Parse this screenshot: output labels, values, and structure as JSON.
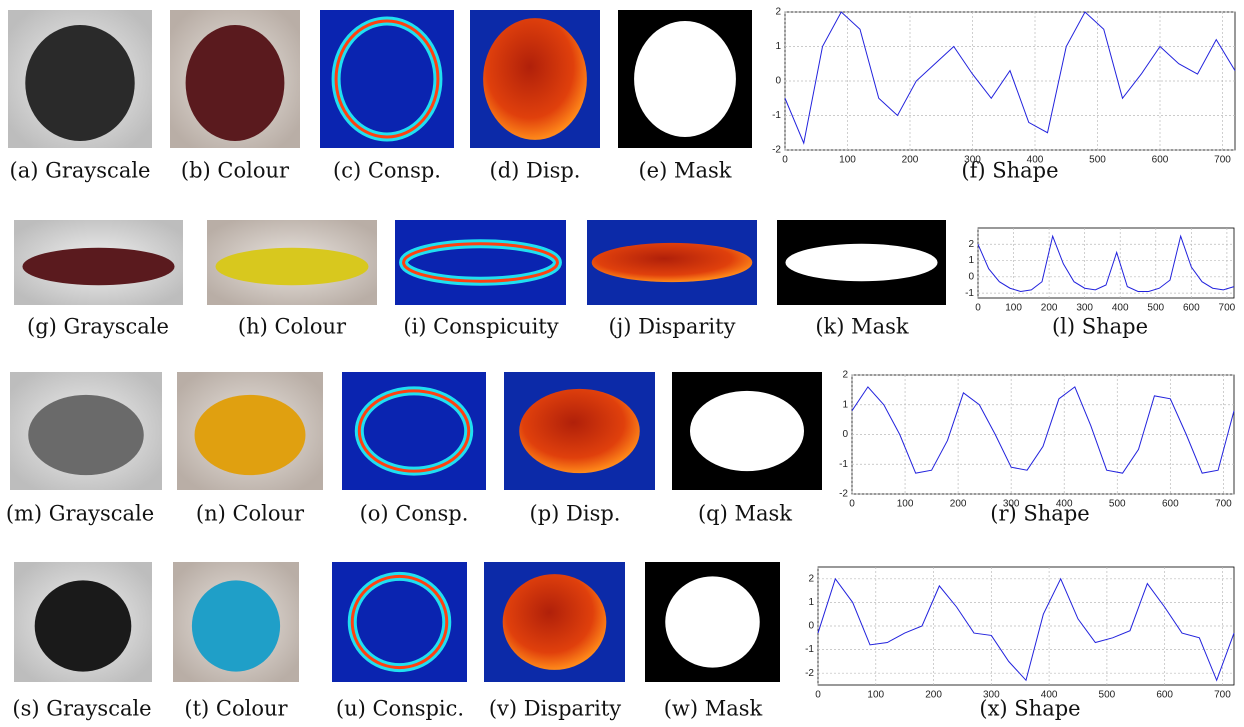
{
  "captions": [
    [
      "(a) Grayscale",
      "(b) Colour",
      "(c) Consp.",
      "(d) Disp.",
      "(e) Mask",
      "(f) Shape"
    ],
    [
      "(g) Grayscale",
      "(h) Colour",
      "(i) Conspicuity",
      "(j) Disparity",
      "(k) Mask",
      "(l) Shape"
    ],
    [
      "(m) Grayscale",
      "(n) Colour",
      "(o) Consp.",
      "(p) Disp.",
      "(q) Mask",
      "(r) Shape"
    ],
    [
      "(s) Grayscale",
      "(t) Colour",
      "(u) Conspic.",
      "(v) Disparity",
      "(w) Mask",
      "(x) Shape"
    ]
  ],
  "chart_data": [
    {
      "type": "line",
      "color": "#2222dd",
      "grid": true,
      "xlim": [
        0,
        720
      ],
      "ylim": [
        -2,
        2
      ],
      "xticks": [
        0,
        100,
        200,
        300,
        400,
        500,
        600,
        700
      ],
      "yticks": [
        -2,
        -1,
        0,
        1,
        2
      ],
      "x": [
        0,
        30,
        60,
        90,
        120,
        150,
        180,
        210,
        240,
        270,
        300,
        330,
        360,
        390,
        420,
        450,
        480,
        510,
        540,
        570,
        600,
        630,
        660,
        690,
        720
      ],
      "values": [
        -0.5,
        -1.8,
        1.0,
        2.0,
        1.5,
        -0.5,
        -1.0,
        0.0,
        0.5,
        1.0,
        0.2,
        -0.5,
        0.3,
        -1.2,
        -1.5,
        1.0,
        2.0,
        1.5,
        -0.5,
        0.2,
        1.0,
        0.5,
        0.2,
        1.2,
        0.3
      ]
    },
    {
      "type": "line",
      "color": "#2222dd",
      "grid": true,
      "xlim": [
        0,
        720
      ],
      "ylim": [
        -1.3,
        3
      ],
      "xticks": [
        0,
        100,
        200,
        300,
        400,
        500,
        600,
        700
      ],
      "yticks": [
        -1,
        0,
        1,
        2
      ],
      "x": [
        0,
        30,
        60,
        90,
        120,
        150,
        180,
        210,
        240,
        270,
        300,
        330,
        360,
        390,
        420,
        450,
        480,
        510,
        540,
        570,
        600,
        630,
        660,
        690,
        720
      ],
      "values": [
        2.0,
        0.5,
        -0.3,
        -0.7,
        -0.9,
        -0.8,
        -0.3,
        2.5,
        0.8,
        -0.3,
        -0.7,
        -0.8,
        -0.5,
        1.5,
        -0.6,
        -0.9,
        -0.9,
        -0.7,
        -0.2,
        2.5,
        0.6,
        -0.3,
        -0.7,
        -0.8,
        -0.6
      ]
    },
    {
      "type": "line",
      "color": "#2222dd",
      "grid": true,
      "xlim": [
        0,
        720
      ],
      "ylim": [
        -2,
        2
      ],
      "xticks": [
        0,
        100,
        200,
        300,
        400,
        500,
        600,
        700
      ],
      "yticks": [
        -2,
        -1,
        0,
        1,
        2
      ],
      "x": [
        0,
        30,
        60,
        90,
        120,
        150,
        180,
        210,
        240,
        270,
        300,
        330,
        360,
        390,
        420,
        450,
        480,
        510,
        540,
        570,
        600,
        630,
        660,
        690,
        720
      ],
      "values": [
        0.8,
        1.6,
        1.0,
        0.0,
        -1.3,
        -1.2,
        -0.2,
        1.4,
        1.0,
        0.0,
        -1.1,
        -1.2,
        -0.4,
        1.2,
        1.6,
        0.3,
        -1.2,
        -1.3,
        -0.5,
        1.3,
        1.2,
        0.0,
        -1.3,
        -1.2,
        0.8
      ]
    },
    {
      "type": "line",
      "color": "#2222dd",
      "grid": true,
      "xlim": [
        0,
        720
      ],
      "ylim": [
        -2.5,
        2.5
      ],
      "xticks": [
        0,
        100,
        200,
        300,
        400,
        500,
        600,
        700
      ],
      "yticks": [
        -2,
        -1,
        0,
        1,
        2
      ],
      "x": [
        0,
        30,
        60,
        90,
        120,
        150,
        180,
        210,
        240,
        270,
        300,
        330,
        360,
        390,
        420,
        450,
        480,
        510,
        540,
        570,
        600,
        630,
        660,
        690,
        720
      ],
      "values": [
        -0.3,
        2.0,
        1.0,
        -0.8,
        -0.7,
        -0.3,
        0.0,
        1.7,
        0.8,
        -0.3,
        -0.4,
        -1.5,
        -2.3,
        0.5,
        2.0,
        0.3,
        -0.7,
        -0.5,
        -0.2,
        1.8,
        0.8,
        -0.3,
        -0.5,
        -2.3,
        -0.3
      ]
    }
  ]
}
